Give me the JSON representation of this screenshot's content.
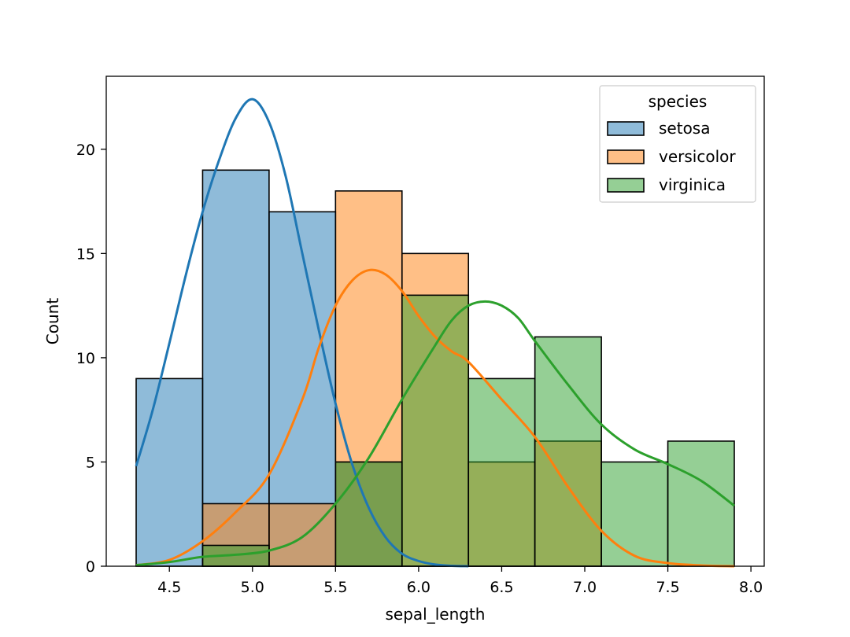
{
  "chart_data": {
    "type": "bar",
    "subtype": "overlapping histogram with kde",
    "title": "",
    "xlabel": "sepal_length",
    "ylabel": "Count",
    "xlim": [
      4.12,
      8.08
    ],
    "ylim": [
      0,
      23.5
    ],
    "x_ticks": [
      "4.5",
      "5.0",
      "5.5",
      "6.0",
      "6.5",
      "7.0",
      "7.5",
      "8.0"
    ],
    "y_ticks": [
      "0",
      "5",
      "10",
      "15",
      "20"
    ],
    "grid": false,
    "bin_edges": [
      4.3,
      4.7,
      5.1,
      5.5,
      5.9,
      6.3,
      6.7,
      7.1,
      7.5,
      7.9
    ],
    "legend": {
      "title": "species",
      "position": "top-right"
    },
    "series": [
      {
        "name": "setosa",
        "color": "#1f77b4",
        "fill": "#8fb9db",
        "values": [
          9,
          19,
          17,
          5,
          0,
          0,
          0,
          0,
          0
        ],
        "kde": {
          "x": [
            4.3,
            4.4,
            4.5,
            4.6,
            4.7,
            4.8,
            4.9,
            5.0,
            5.1,
            5.2,
            5.3,
            5.4,
            5.5,
            5.6,
            5.7,
            5.8,
            5.9,
            6.0,
            6.1,
            6.2,
            6.3
          ],
          "y": [
            4.8,
            7.5,
            10.7,
            14.0,
            17.0,
            19.5,
            21.5,
            22.4,
            21.3,
            18.7,
            15.0,
            11.3,
            7.8,
            4.9,
            2.8,
            1.4,
            0.6,
            0.25,
            0.08,
            0.02,
            0.0
          ]
        }
      },
      {
        "name": "versicolor",
        "color": "#ff7f0e",
        "fill": "#ffbe86",
        "values": [
          0,
          3,
          3,
          18,
          15,
          5,
          6,
          0,
          0
        ],
        "kde": {
          "x": [
            4.3,
            4.5,
            4.7,
            4.9,
            5.1,
            5.3,
            5.4,
            5.5,
            5.6,
            5.7,
            5.8,
            5.9,
            6.0,
            6.1,
            6.2,
            6.3,
            6.5,
            6.7,
            6.9,
            7.1,
            7.3,
            7.5,
            7.7,
            7.9
          ],
          "y": [
            0.05,
            0.3,
            1.2,
            2.6,
            4.4,
            8.0,
            10.5,
            12.5,
            13.7,
            14.2,
            14.0,
            13.2,
            12.0,
            11.0,
            10.3,
            9.8,
            8.0,
            6.2,
            3.8,
            1.7,
            0.5,
            0.15,
            0.04,
            0.0
          ]
        }
      },
      {
        "name": "virginica",
        "color": "#2ca02c",
        "fill": "#8ecf8e",
        "values": [
          0,
          1,
          0,
          5,
          13,
          9,
          11,
          5,
          6
        ],
        "kde": {
          "x": [
            4.3,
            4.5,
            4.7,
            4.9,
            5.1,
            5.3,
            5.5,
            5.7,
            5.9,
            6.1,
            6.2,
            6.3,
            6.4,
            6.5,
            6.6,
            6.7,
            6.9,
            7.1,
            7.3,
            7.5,
            7.7,
            7.9
          ],
          "y": [
            0.05,
            0.2,
            0.45,
            0.55,
            0.75,
            1.4,
            3.0,
            5.2,
            8.0,
            10.6,
            11.8,
            12.5,
            12.7,
            12.5,
            11.9,
            10.8,
            8.7,
            6.8,
            5.6,
            4.9,
            4.1,
            2.9
          ]
        }
      }
    ]
  }
}
